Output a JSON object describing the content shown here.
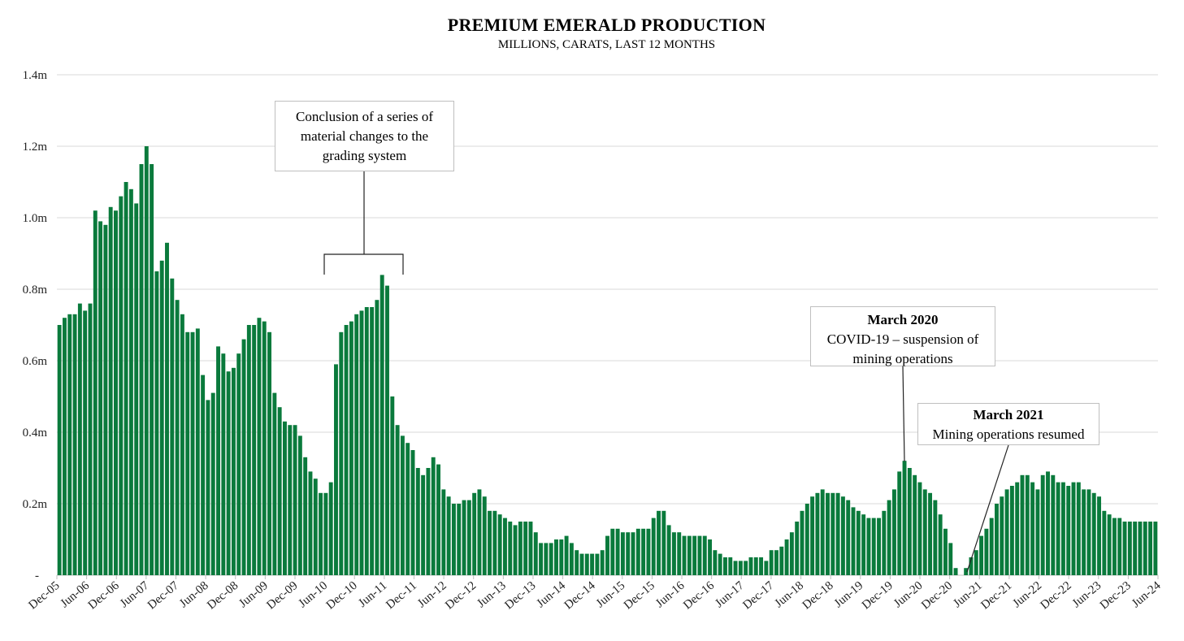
{
  "chart_data": {
    "type": "bar",
    "title": "PREMIUM EMERALD PRODUCTION",
    "subtitle": "MILLIONS, CARATS, LAST 12 MONTHS",
    "xlabel": "",
    "ylabel": "",
    "ylim": [
      0,
      1.4
    ],
    "yticks": [
      {
        "value": 0,
        "label": "-"
      },
      {
        "value": 0.2,
        "label": "0.2m"
      },
      {
        "value": 0.4,
        "label": "0.4m"
      },
      {
        "value": 0.6,
        "label": "0.6m"
      },
      {
        "value": 0.8,
        "label": "0.8m"
      },
      {
        "value": 1.0,
        "label": "1.0m"
      },
      {
        "value": 1.2,
        "label": "1.2m"
      },
      {
        "value": 1.4,
        "label": "1.4m"
      }
    ],
    "grid": true,
    "legend": "none",
    "bar_color": "#0a7a3c",
    "x_tick_labels": [
      "Dec-05",
      "Jun-06",
      "Dec-06",
      "Jun-07",
      "Dec-07",
      "Jun-08",
      "Dec-08",
      "Jun-09",
      "Dec-09",
      "Jun-10",
      "Dec-10",
      "Jun-11",
      "Dec-11",
      "Jun-12",
      "Dec-12",
      "Jun-13",
      "Dec-13",
      "Jun-14",
      "Dec-14",
      "Jun-15",
      "Dec-15",
      "Jun-16",
      "Dec-16",
      "Jun-17",
      "Dec-17",
      "Jun-18",
      "Dec-18",
      "Jun-19",
      "Dec-19",
      "Jun-20",
      "Dec-20",
      "Jun-21",
      "Dec-21",
      "Jun-22",
      "Dec-22",
      "Jun-23",
      "Dec-23",
      "Jun-24"
    ],
    "values": [
      0.7,
      0.72,
      0.73,
      0.73,
      0.76,
      0.74,
      0.76,
      1.02,
      0.99,
      0.98,
      1.03,
      1.02,
      1.06,
      1.1,
      1.08,
      1.04,
      1.15,
      1.2,
      1.15,
      0.85,
      0.88,
      0.93,
      0.83,
      0.77,
      0.73,
      0.68,
      0.68,
      0.69,
      0.56,
      0.49,
      0.51,
      0.64,
      0.62,
      0.57,
      0.58,
      0.62,
      0.66,
      0.7,
      0.7,
      0.72,
      0.71,
      0.68,
      0.51,
      0.47,
      0.43,
      0.42,
      0.42,
      0.39,
      0.33,
      0.29,
      0.27,
      0.23,
      0.23,
      0.26,
      0.59,
      0.68,
      0.7,
      0.71,
      0.73,
      0.74,
      0.75,
      0.75,
      0.77,
      0.84,
      0.81,
      0.5,
      0.42,
      0.39,
      0.37,
      0.35,
      0.3,
      0.28,
      0.3,
      0.33,
      0.31,
      0.24,
      0.22,
      0.2,
      0.2,
      0.21,
      0.21,
      0.23,
      0.24,
      0.22,
      0.18,
      0.18,
      0.17,
      0.16,
      0.15,
      0.14,
      0.15,
      0.15,
      0.15,
      0.12,
      0.09,
      0.09,
      0.09,
      0.1,
      0.1,
      0.11,
      0.09,
      0.07,
      0.06,
      0.06,
      0.06,
      0.06,
      0.07,
      0.11,
      0.13,
      0.13,
      0.12,
      0.12,
      0.12,
      0.13,
      0.13,
      0.13,
      0.16,
      0.18,
      0.18,
      0.14,
      0.12,
      0.12,
      0.11,
      0.11,
      0.11,
      0.11,
      0.11,
      0.1,
      0.07,
      0.06,
      0.05,
      0.05,
      0.04,
      0.04,
      0.04,
      0.05,
      0.05,
      0.05,
      0.04,
      0.07,
      0.07,
      0.08,
      0.1,
      0.12,
      0.15,
      0.18,
      0.2,
      0.22,
      0.23,
      0.24,
      0.23,
      0.23,
      0.23,
      0.22,
      0.21,
      0.19,
      0.18,
      0.17,
      0.16,
      0.16,
      0.16,
      0.18,
      0.21,
      0.24,
      0.29,
      0.32,
      0.3,
      0.28,
      0.26,
      0.24,
      0.23,
      0.21,
      0.17,
      0.13,
      0.09,
      0.02,
      0.0,
      0.02,
      0.05,
      0.07,
      0.11,
      0.13,
      0.16,
      0.2,
      0.22,
      0.24,
      0.25,
      0.26,
      0.28,
      0.28,
      0.26,
      0.24,
      0.28,
      0.29,
      0.28,
      0.26,
      0.26,
      0.25,
      0.26,
      0.26,
      0.24,
      0.24,
      0.23,
      0.22,
      0.18,
      0.17,
      0.16,
      0.16,
      0.15,
      0.15,
      0.15,
      0.15,
      0.15,
      0.15,
      0.15
    ],
    "annotations": [
      {
        "lines": [
          "Conclusion of a series of",
          "material changes to the",
          "grading system"
        ],
        "bold": ""
      },
      {
        "lines": [
          "COVID-19 – suspension of",
          "mining operations"
        ],
        "bold": "March 2020"
      },
      {
        "lines": [
          "Mining operations resumed"
        ],
        "bold": "March 2021"
      }
    ]
  }
}
